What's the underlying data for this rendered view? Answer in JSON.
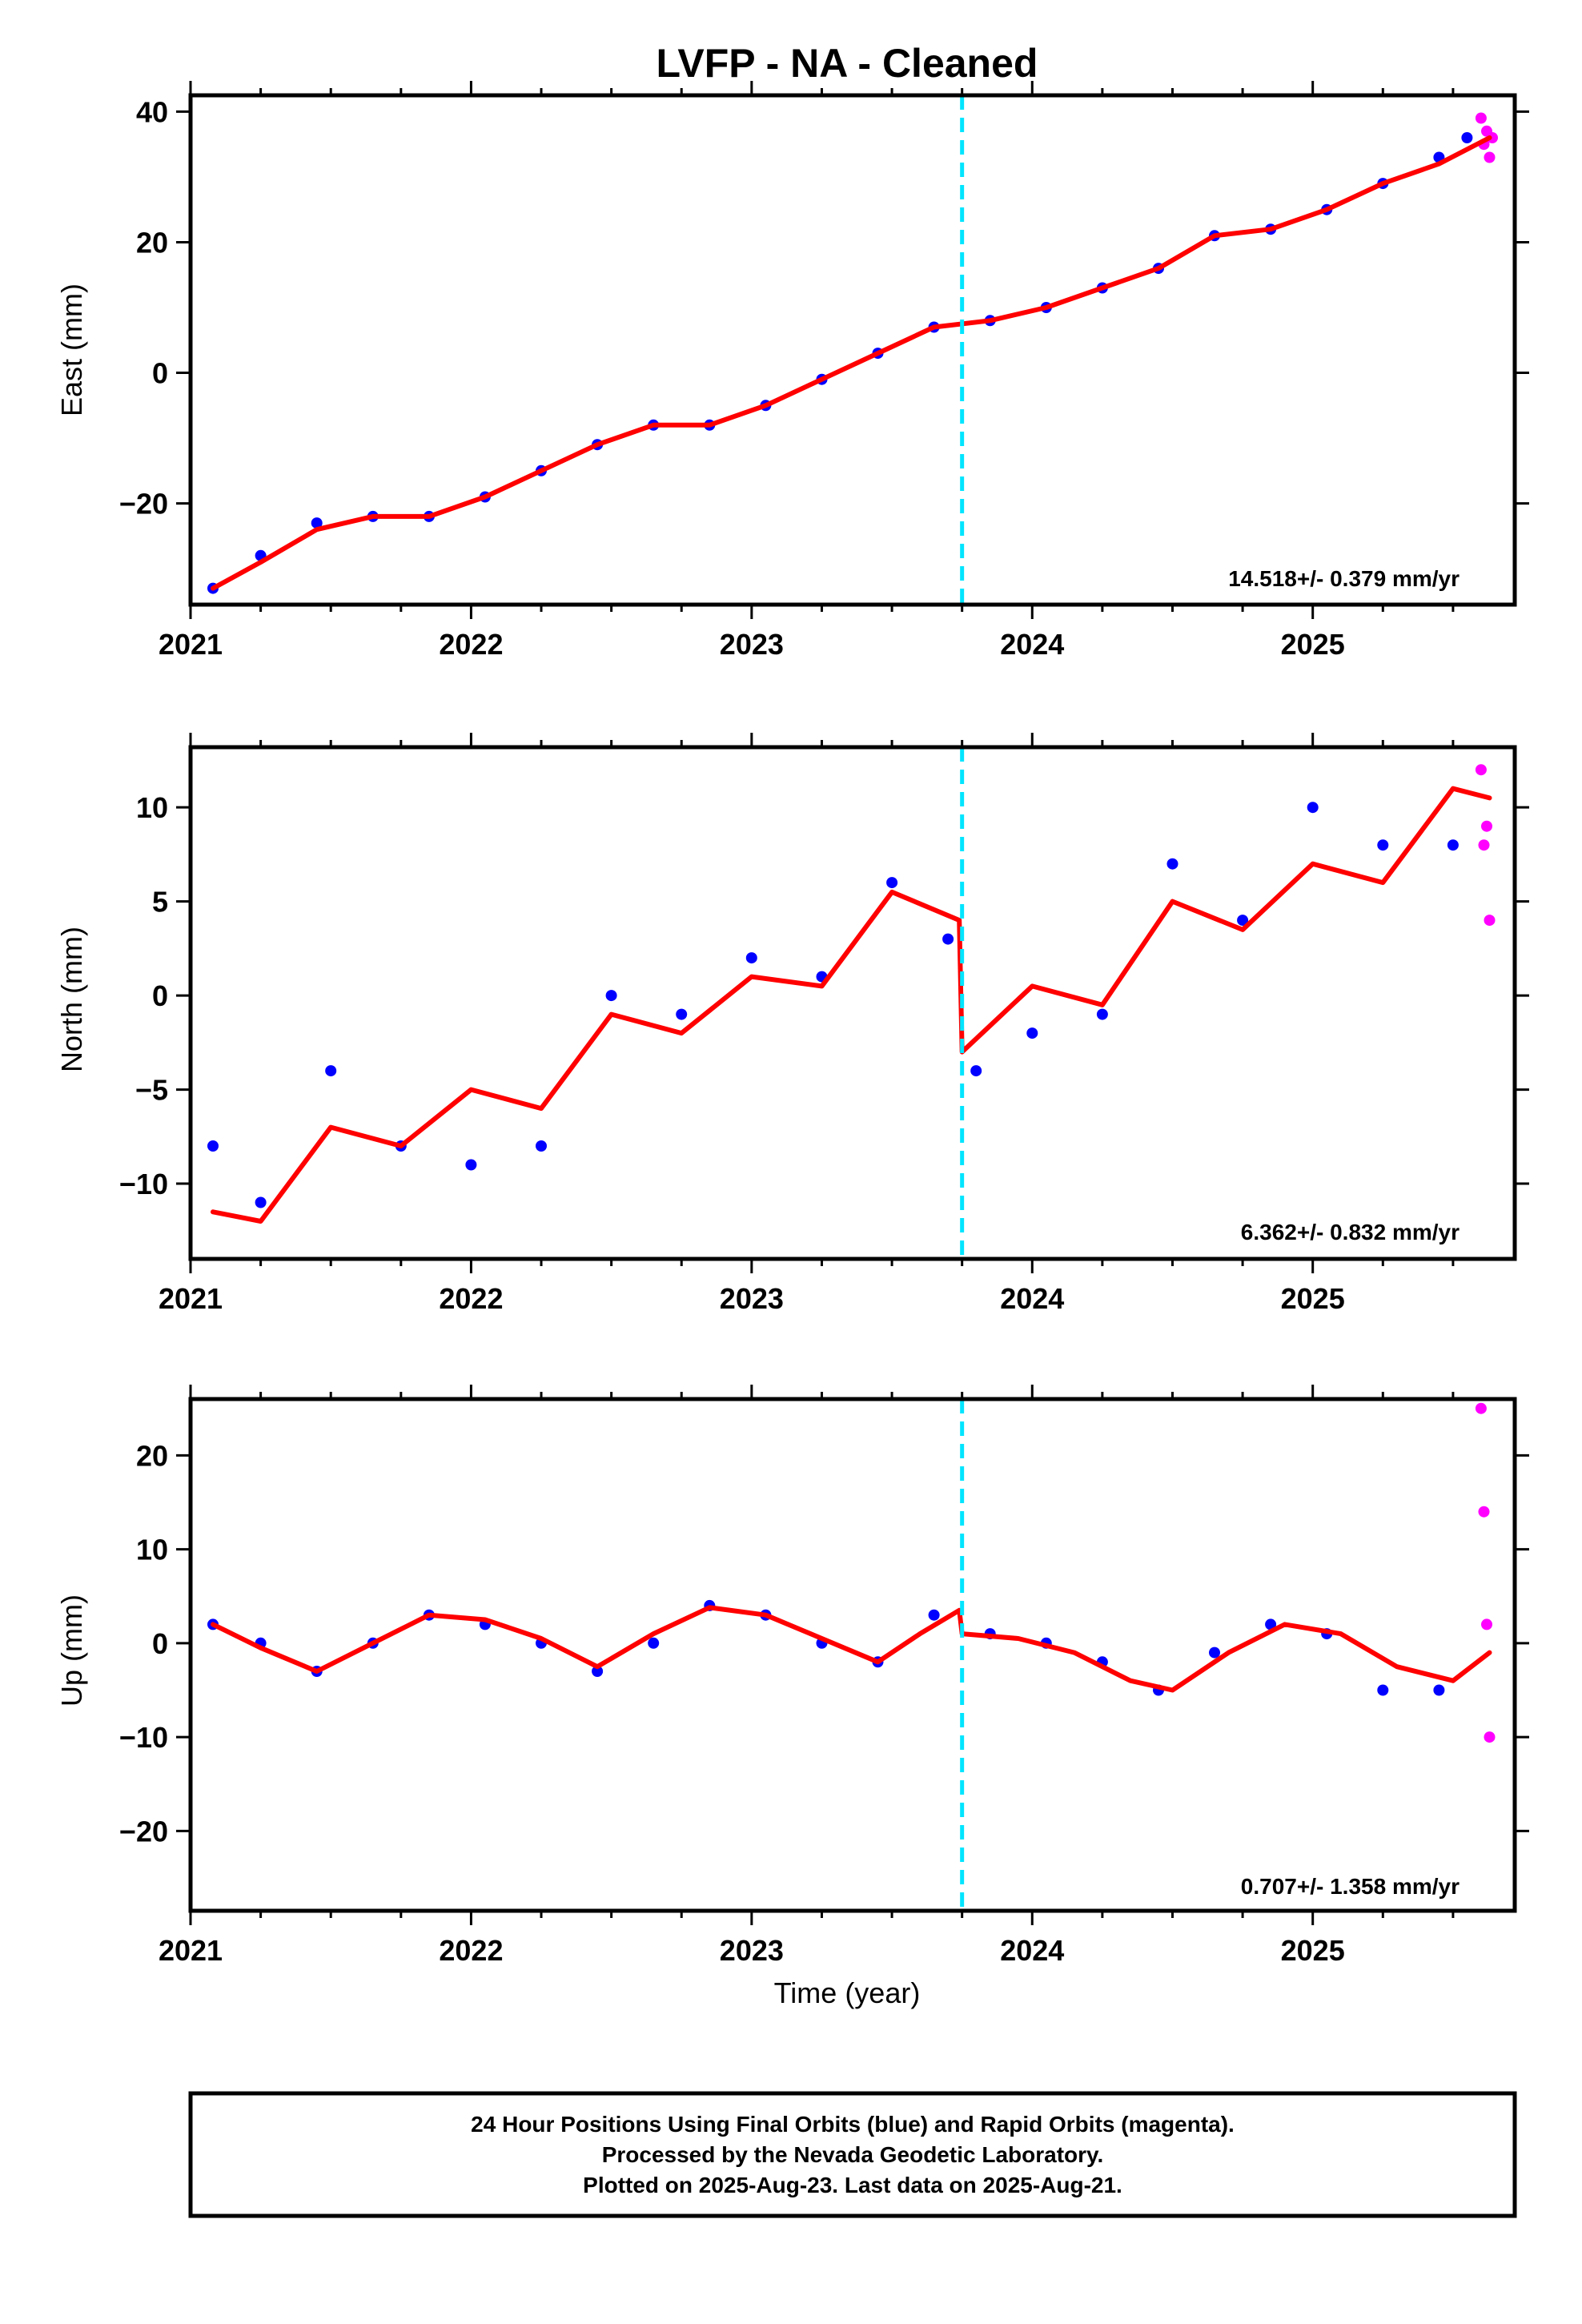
{
  "chart_data": [
    {
      "type": "scatter",
      "title": "LVFP  - NA - Cleaned",
      "ylabel": "East (mm)",
      "xlabel": "",
      "xlim": [
        2021.0,
        2025.72
      ],
      "ylim": [
        -35.5,
        42.5
      ],
      "xticks": [
        2021,
        2022,
        2023,
        2024,
        2025
      ],
      "yticks": [
        -20,
        0,
        20,
        40
      ],
      "rate_label": "14.518+/- 0.379 mm/yr",
      "equipment_change": 2023.75,
      "series": [
        {
          "name": "Final Orbits",
          "color": "#0000ff",
          "x": [
            2021.08,
            2021.25,
            2021.45,
            2021.65,
            2021.85,
            2022.05,
            2022.25,
            2022.45,
            2022.65,
            2022.85,
            2023.05,
            2023.25,
            2023.45,
            2023.65,
            2023.85,
            2024.05,
            2024.25,
            2024.45,
            2024.65,
            2024.85,
            2025.05,
            2025.25,
            2025.45,
            2025.55
          ],
          "y": [
            -33,
            -28,
            -23,
            -22,
            -22,
            -19,
            -15,
            -11,
            -8,
            -8,
            -5,
            -1,
            3,
            7,
            8,
            10,
            13,
            16,
            21,
            22,
            25,
            29,
            33,
            36
          ]
        },
        {
          "name": "Rapid Orbits",
          "color": "#ff00ff",
          "x": [
            2025.6,
            2025.61,
            2025.62,
            2025.63,
            2025.64
          ],
          "y": [
            39,
            35,
            37,
            33,
            36
          ]
        },
        {
          "name": "Model",
          "color": "#ff0000",
          "x": [
            2021.08,
            2021.25,
            2021.45,
            2021.65,
            2021.85,
            2022.05,
            2022.25,
            2022.45,
            2022.65,
            2022.85,
            2023.05,
            2023.25,
            2023.45,
            2023.65,
            2023.85,
            2024.05,
            2024.25,
            2024.45,
            2024.65,
            2024.85,
            2025.05,
            2025.25,
            2025.45,
            2025.63
          ],
          "y": [
            -33,
            -29,
            -24,
            -22,
            -22,
            -19,
            -15,
            -11,
            -8,
            -8,
            -5,
            -1,
            3,
            7,
            8,
            10,
            13,
            16,
            21,
            22,
            25,
            29,
            32,
            36
          ]
        }
      ]
    },
    {
      "type": "scatter",
      "title": "",
      "ylabel": "North (mm)",
      "xlabel": "",
      "xlim": [
        2021.0,
        2025.72
      ],
      "ylim": [
        -14,
        13.2
      ],
      "xticks": [
        2021,
        2022,
        2023,
        2024,
        2025
      ],
      "yticks": [
        -10,
        -5,
        0,
        5,
        10
      ],
      "rate_label": "6.362+/- 0.832 mm/yr",
      "equipment_change": 2023.75,
      "series": [
        {
          "name": "Final Orbits",
          "color": "#0000ff",
          "x": [
            2021.08,
            2021.25,
            2021.5,
            2021.75,
            2022.0,
            2022.25,
            2022.5,
            2022.75,
            2023.0,
            2023.25,
            2023.5,
            2023.7,
            2023.8,
            2024.0,
            2024.25,
            2024.5,
            2024.75,
            2025.0,
            2025.25,
            2025.5
          ],
          "y": [
            -8,
            -11,
            -4,
            -8,
            -9,
            -8,
            0,
            -1,
            2,
            1,
            6,
            3,
            -4,
            -2,
            -1,
            7,
            4,
            10,
            8,
            8
          ]
        },
        {
          "name": "Rapid Orbits",
          "color": "#ff00ff",
          "x": [
            2025.6,
            2025.61,
            2025.62,
            2025.63
          ],
          "y": [
            12,
            8,
            9,
            4
          ]
        },
        {
          "name": "Model",
          "color": "#ff0000",
          "x": [
            2021.08,
            2021.25,
            2021.5,
            2021.75,
            2022.0,
            2022.25,
            2022.5,
            2022.75,
            2023.0,
            2023.25,
            2023.5,
            2023.74,
            2023.75,
            2024.0,
            2024.25,
            2024.5,
            2024.75,
            2025.0,
            2025.25,
            2025.5,
            2025.63
          ],
          "y": [
            -11.5,
            -12,
            -7,
            -8,
            -5,
            -6,
            -1,
            -2,
            1,
            0.5,
            5.5,
            4,
            -3,
            0.5,
            -0.5,
            5,
            3.5,
            7,
            6,
            11,
            10.5
          ]
        }
      ]
    },
    {
      "type": "scatter",
      "title": "",
      "ylabel": "Up (mm)",
      "xlabel": "Time (year)",
      "xlim": [
        2021.0,
        2025.72
      ],
      "ylim": [
        -28.5,
        26
      ],
      "xticks": [
        2021,
        2022,
        2023,
        2024,
        2025
      ],
      "yticks": [
        -20,
        -10,
        0,
        10,
        20
      ],
      "rate_label": "0.707+/- 1.358 mm/yr",
      "equipment_change": 2023.75,
      "series": [
        {
          "name": "Final Orbits",
          "color": "#0000ff",
          "x": [
            2021.08,
            2021.25,
            2021.45,
            2021.65,
            2021.85,
            2022.05,
            2022.25,
            2022.45,
            2022.65,
            2022.85,
            2023.05,
            2023.25,
            2023.45,
            2023.65,
            2023.85,
            2024.05,
            2024.25,
            2024.45,
            2024.65,
            2024.85,
            2025.05,
            2025.25,
            2025.45
          ],
          "y": [
            2,
            0,
            -3,
            0,
            3,
            2,
            0,
            -3,
            0,
            4,
            3,
            0,
            -2,
            3,
            1,
            0,
            -2,
            -5,
            -1,
            2,
            1,
            -5,
            -5
          ]
        },
        {
          "name": "Rapid Orbits",
          "color": "#ff00ff",
          "x": [
            2025.6,
            2025.61,
            2025.62,
            2025.63
          ],
          "y": [
            25,
            14,
            2,
            -10
          ]
        },
        {
          "name": "Model",
          "color": "#ff0000",
          "x": [
            2021.08,
            2021.25,
            2021.45,
            2021.65,
            2021.85,
            2022.05,
            2022.25,
            2022.45,
            2022.65,
            2022.85,
            2023.05,
            2023.25,
            2023.45,
            2023.6,
            2023.74,
            2023.75,
            2023.95,
            2024.15,
            2024.35,
            2024.5,
            2024.7,
            2024.9,
            2025.1,
            2025.3,
            2025.5,
            2025.63
          ],
          "y": [
            2,
            -0.5,
            -3,
            0,
            3,
            2.5,
            0.5,
            -2.5,
            1,
            3.8,
            3,
            0.5,
            -2,
            1,
            3.5,
            1,
            0.5,
            -1,
            -4,
            -5,
            -1,
            2,
            1,
            -2.5,
            -4,
            -1
          ]
        }
      ]
    }
  ],
  "footer": {
    "line1": "24 Hour Positions Using Final Orbits (blue) and Rapid Orbits (magenta).",
    "line2": "Processed by the Nevada Geodetic Laboratory.",
    "line3": "Plotted on 2025-Aug-23. Last data on 2025-Aug-21."
  }
}
